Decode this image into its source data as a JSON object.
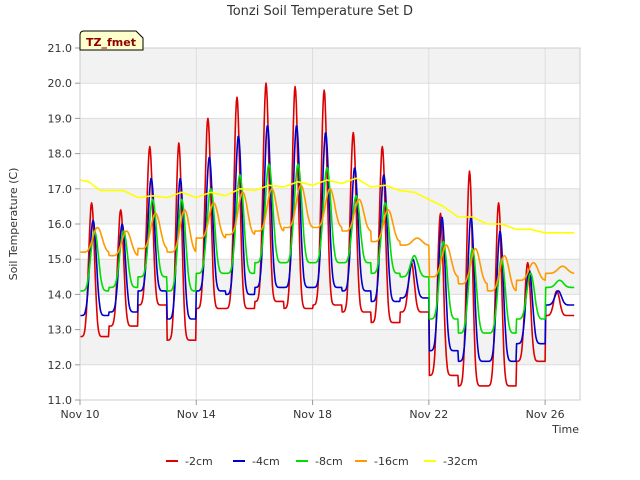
{
  "chart_data": {
    "type": "line",
    "title": "Tonzi Soil Temperature Set D",
    "xlabel": "Time",
    "ylabel": "Soil Temperature (C)",
    "badge": "TZ_fmet",
    "xlim": [
      0,
      17.2
    ],
    "ylim": [
      11.0,
      21.0
    ],
    "yticks": [
      "11.0",
      "12.0",
      "13.0",
      "14.0",
      "15.0",
      "16.0",
      "17.0",
      "18.0",
      "19.0",
      "20.0",
      "21.0"
    ],
    "xticks": [
      {
        "value": 0,
        "label": "Nov 10"
      },
      {
        "value": 4,
        "label": "Nov 14"
      },
      {
        "value": 8,
        "label": "Nov 18"
      },
      {
        "value": 12,
        "label": "Nov 22"
      },
      {
        "value": 16,
        "label": "Nov 26"
      }
    ],
    "grid": true,
    "legend_position": "bottom",
    "series": [
      {
        "name": "-2cm",
        "color": "#dd0000",
        "peak_phase": 0.4,
        "sharpness": 5,
        "min": [
          12.8,
          13.1,
          13.7,
          12.7,
          13.6,
          13.6,
          13.8,
          13.6,
          13.7,
          13.5,
          13.2,
          13.5,
          11.7,
          11.4,
          11.4,
          12.1,
          13.4,
          13.4
        ],
        "max": [
          16.6,
          16.4,
          18.2,
          18.3,
          19.0,
          19.6,
          20.0,
          19.9,
          19.8,
          18.6,
          18.2,
          14.9,
          16.3,
          17.5,
          16.6,
          14.9,
          14.1,
          14.1
        ]
      },
      {
        "name": "-4cm",
        "color": "#0000cc",
        "peak_phase": 0.45,
        "sharpness": 4,
        "min": [
          13.4,
          13.5,
          14.1,
          13.3,
          14.1,
          14.0,
          14.2,
          14.2,
          14.2,
          14.1,
          13.8,
          13.9,
          12.4,
          12.1,
          12.1,
          12.6,
          13.7,
          13.7
        ],
        "max": [
          16.1,
          16.0,
          17.3,
          17.3,
          17.9,
          18.5,
          18.8,
          18.8,
          18.6,
          17.6,
          17.4,
          15.0,
          16.2,
          16.2,
          15.8,
          14.7,
          14.1,
          14.1
        ]
      },
      {
        "name": "-8cm",
        "color": "#00dd00",
        "peak_phase": 0.5,
        "sharpness": 3,
        "min": [
          14.1,
          14.2,
          14.5,
          14.1,
          14.6,
          14.6,
          14.9,
          14.9,
          14.9,
          14.9,
          14.6,
          14.5,
          13.3,
          12.9,
          12.9,
          13.3,
          14.2,
          14.2
        ],
        "max": [
          15.8,
          15.8,
          16.7,
          16.7,
          17.0,
          17.4,
          17.7,
          17.7,
          17.6,
          16.8,
          16.6,
          15.1,
          15.5,
          15.3,
          15.0,
          14.6,
          14.4,
          14.4
        ]
      },
      {
        "name": "-16cm",
        "color": "#ff9900",
        "peak_phase": 0.6,
        "sharpness": 2,
        "min": [
          15.2,
          15.1,
          15.3,
          15.2,
          15.6,
          15.7,
          15.8,
          15.9,
          15.9,
          15.8,
          15.5,
          15.4,
          14.5,
          14.3,
          14.1,
          14.4,
          14.6,
          14.7
        ],
        "max": [
          15.9,
          15.8,
          16.3,
          16.4,
          16.6,
          16.9,
          17.0,
          17.1,
          17.0,
          16.7,
          16.4,
          15.6,
          15.4,
          15.3,
          15.1,
          14.9,
          14.8,
          14.8
        ]
      },
      {
        "name": "-32cm",
        "color": "#ffff00",
        "peak_phase": 0.7,
        "sharpness": 1,
        "points": [
          [
            0,
            17.25
          ],
          [
            0.3,
            17.2
          ],
          [
            0.7,
            16.95
          ],
          [
            1.5,
            16.95
          ],
          [
            2.0,
            16.75
          ],
          [
            2.5,
            16.8
          ],
          [
            3.0,
            16.75
          ],
          [
            3.5,
            16.9
          ],
          [
            4.0,
            16.75
          ],
          [
            4.5,
            16.9
          ],
          [
            5.0,
            16.8
          ],
          [
            5.5,
            17.0
          ],
          [
            6.0,
            16.95
          ],
          [
            6.5,
            17.1
          ],
          [
            7.0,
            17.05
          ],
          [
            7.5,
            17.2
          ],
          [
            8.0,
            17.1
          ],
          [
            8.5,
            17.25
          ],
          [
            9.0,
            17.15
          ],
          [
            9.5,
            17.3
          ],
          [
            10.0,
            17.05
          ],
          [
            10.5,
            17.1
          ],
          [
            11.0,
            16.95
          ],
          [
            11.5,
            16.9
          ],
          [
            12.0,
            16.7
          ],
          [
            12.5,
            16.5
          ],
          [
            13.0,
            16.2
          ],
          [
            13.5,
            16.2
          ],
          [
            14.0,
            16.0
          ],
          [
            14.5,
            16.0
          ],
          [
            15.0,
            15.85
          ],
          [
            15.5,
            15.85
          ],
          [
            16.0,
            15.75
          ],
          [
            16.5,
            15.75
          ],
          [
            17.0,
            15.75
          ]
        ]
      }
    ]
  }
}
